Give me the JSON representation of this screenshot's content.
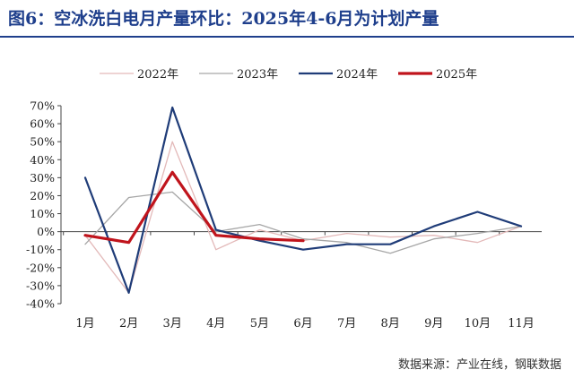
{
  "header": {
    "title": "图6：空冰洗白电月产量环比：2025年4-6月为计划产量"
  },
  "source": "数据来源：产业在线，钢联数据",
  "chart_data": {
    "type": "line",
    "title": "",
    "xlabel": "",
    "ylabel": "",
    "categories": [
      "1月",
      "2月",
      "3月",
      "4月",
      "5月",
      "6月",
      "7月",
      "8月",
      "9月",
      "10月",
      "11月"
    ],
    "ylim": [
      -40,
      70
    ],
    "yticks": [
      -40,
      -30,
      -20,
      -10,
      0,
      10,
      20,
      30,
      40,
      50,
      60,
      70
    ],
    "ytick_labels": [
      "-40%",
      "-30%",
      "-20%",
      "-10%",
      "0%",
      "10%",
      "20%",
      "30%",
      "40%",
      "50%",
      "60%",
      "70%"
    ],
    "grid": false,
    "legend_position": "top",
    "series": [
      {
        "name": "2022年",
        "color": "#e3b9b9",
        "width": 1.3,
        "values": [
          -2,
          -34,
          50,
          -10,
          1,
          -5,
          -1,
          -3,
          -2,
          -6,
          3
        ]
      },
      {
        "name": "2023年",
        "color": "#a6a6a6",
        "width": 1.3,
        "values": [
          -7,
          19,
          22,
          0,
          4,
          -4,
          -6,
          -12,
          -4,
          -1,
          3
        ]
      },
      {
        "name": "2024年",
        "color": "#1f3c78",
        "width": 2.2,
        "values": [
          30,
          -34,
          69,
          1,
          -5,
          -10,
          -7,
          -7,
          3,
          11,
          3
        ]
      },
      {
        "name": "2025年",
        "color": "#c0141c",
        "width": 3.2,
        "values": [
          -2,
          -6,
          33,
          -2,
          -4,
          -5,
          null,
          null,
          null,
          null,
          null
        ]
      }
    ]
  }
}
